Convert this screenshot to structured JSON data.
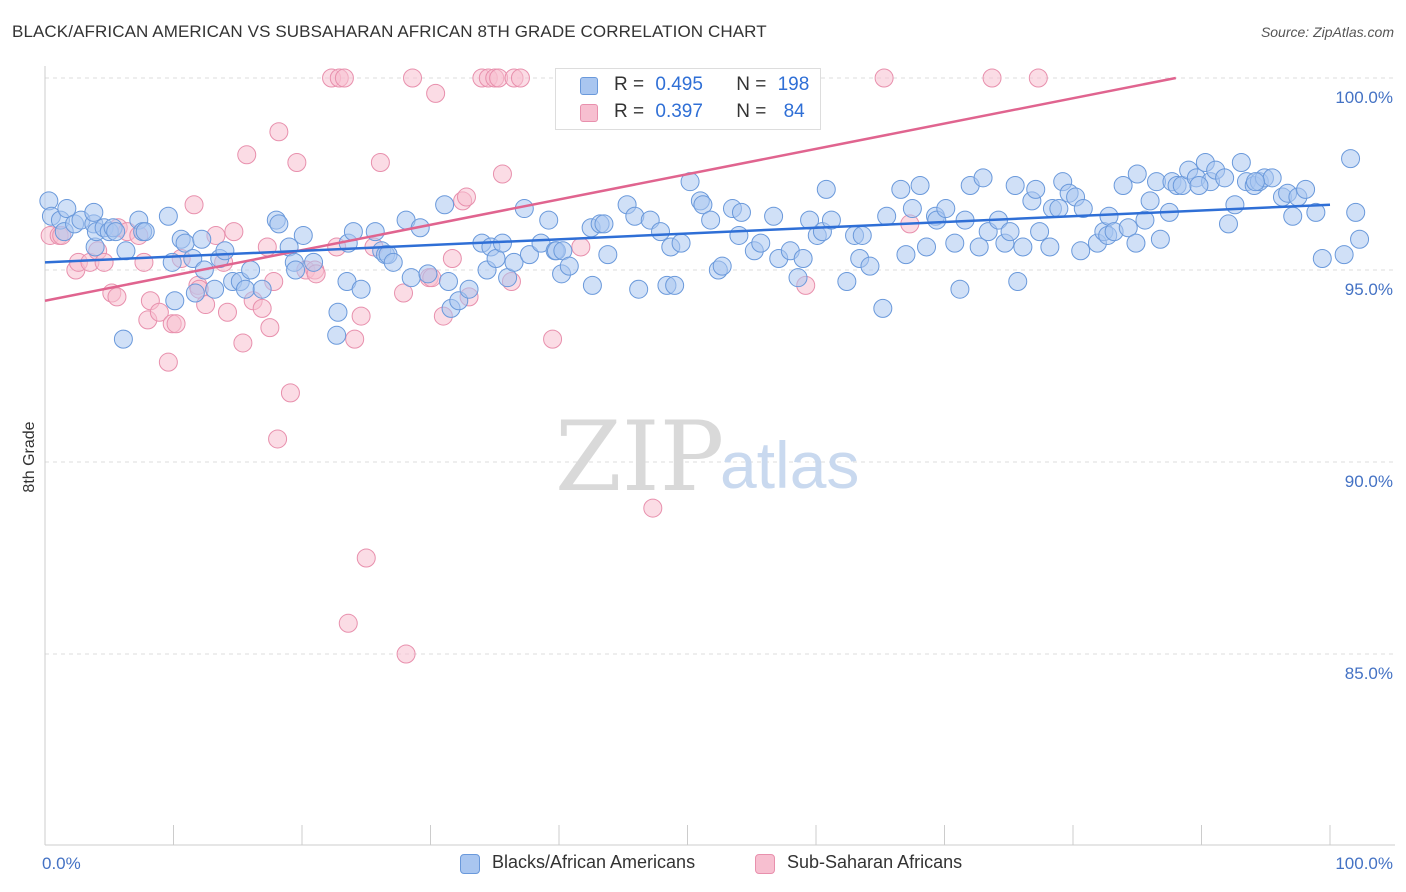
{
  "title": "BLACK/AFRICAN AMERICAN VS SUBSAHARAN AFRICAN 8TH GRADE CORRELATION CHART",
  "source": "Source: ZipAtlas.com",
  "watermark": {
    "zip": "ZIP",
    "atlas": "atlas"
  },
  "legend": {
    "rows": [
      {
        "r_label": "R =",
        "r_value": "0.495",
        "n_label": "N =",
        "n_value": "198"
      },
      {
        "r_label": "R =",
        "r_value": "0.397",
        "n_label": "N =",
        "n_value": "84"
      }
    ]
  },
  "bottom_legend": [
    "Blacks/African Americans",
    "Sub-Saharan Africans"
  ],
  "colors": {
    "blue_fill": "#a9c6f0",
    "blue_stroke": "#6a99db",
    "blue_line": "#2f6fd6",
    "pink_fill": "#f7bfd0",
    "pink_stroke": "#e890ad",
    "pink_line": "#e0648f",
    "tick_text": "#4472c4",
    "grid": "#dddddd"
  },
  "chart_data": {
    "type": "scatter",
    "title": "BLACK/AFRICAN AMERICAN VS SUBSAHARAN AFRICAN 8TH GRADE CORRELATION CHART",
    "xlabel": "",
    "ylabel": "8th Grade",
    "xlim": [
      0,
      100
    ],
    "ylim": [
      80.5,
      101.0
    ],
    "x_tick_labels": [
      "0.0%",
      "100.0%"
    ],
    "y_ticks": [
      85.0,
      90.0,
      95.0,
      100.0
    ],
    "y_tick_labels": [
      "85.0%",
      "90.0%",
      "95.0%",
      "100.0%"
    ],
    "grid": true,
    "legend_position": "top-center",
    "series": [
      {
        "name": "Blacks/African Americans",
        "r": 0.495,
        "n": 198,
        "trend": {
          "x": [
            0,
            100
          ],
          "y": [
            95.2,
            96.7
          ]
        },
        "points": [
          [
            0.3,
            96.8
          ],
          [
            0.5,
            96.4
          ],
          [
            1.2,
            96.3
          ],
          [
            1.5,
            96.0
          ],
          [
            1.7,
            96.6
          ],
          [
            2.3,
            96.2
          ],
          [
            2.8,
            96.3
          ],
          [
            3.8,
            96.2
          ],
          [
            3.8,
            96.5
          ],
          [
            3.9,
            95.6
          ],
          [
            4.0,
            96.0
          ],
          [
            4.6,
            96.1
          ],
          [
            5.0,
            96.0
          ],
          [
            5.3,
            96.1
          ],
          [
            5.5,
            96.0
          ],
          [
            6.1,
            93.2
          ],
          [
            6.3,
            95.5
          ],
          [
            7.3,
            96.3
          ],
          [
            7.6,
            96.0
          ],
          [
            7.8,
            96.0
          ],
          [
            9.6,
            96.4
          ],
          [
            9.9,
            95.2
          ],
          [
            10.1,
            94.2
          ],
          [
            10.6,
            95.8
          ],
          [
            10.9,
            95.7
          ],
          [
            11.5,
            95.3
          ],
          [
            11.7,
            94.4
          ],
          [
            12.2,
            95.8
          ],
          [
            12.4,
            95.0
          ],
          [
            13.2,
            94.5
          ],
          [
            13.6,
            95.3
          ],
          [
            14.0,
            95.5
          ],
          [
            14.6,
            94.7
          ],
          [
            15.2,
            94.7
          ],
          [
            15.6,
            94.5
          ],
          [
            16.0,
            95.0
          ],
          [
            16.9,
            94.5
          ],
          [
            18.0,
            96.3
          ],
          [
            18.2,
            96.2
          ],
          [
            19.0,
            95.6
          ],
          [
            19.4,
            95.2
          ],
          [
            19.5,
            95.0
          ],
          [
            20.1,
            95.9
          ],
          [
            20.9,
            95.2
          ],
          [
            22.7,
            93.3
          ],
          [
            22.8,
            93.9
          ],
          [
            23.5,
            94.7
          ],
          [
            23.6,
            95.7
          ],
          [
            24.0,
            96.0
          ],
          [
            24.6,
            94.5
          ],
          [
            25.7,
            96.0
          ],
          [
            26.2,
            95.5
          ],
          [
            26.5,
            95.4
          ],
          [
            26.7,
            95.4
          ],
          [
            27.1,
            95.2
          ],
          [
            28.1,
            96.3
          ],
          [
            28.5,
            94.8
          ],
          [
            29.2,
            96.1
          ],
          [
            29.8,
            94.9
          ],
          [
            31.1,
            96.7
          ],
          [
            31.4,
            94.7
          ],
          [
            31.6,
            94.0
          ],
          [
            32.2,
            94.2
          ],
          [
            33.0,
            94.5
          ],
          [
            34.0,
            95.7
          ],
          [
            34.4,
            95.0
          ],
          [
            34.7,
            95.6
          ],
          [
            35.1,
            95.3
          ],
          [
            35.6,
            95.7
          ],
          [
            36.0,
            94.8
          ],
          [
            36.5,
            95.2
          ],
          [
            37.3,
            96.6
          ],
          [
            37.7,
            95.4
          ],
          [
            38.6,
            95.7
          ],
          [
            39.2,
            96.3
          ],
          [
            39.7,
            95.5
          ],
          [
            39.8,
            95.5
          ],
          [
            40.2,
            94.9
          ],
          [
            40.3,
            95.5
          ],
          [
            40.8,
            95.1
          ],
          [
            42.5,
            96.1
          ],
          [
            42.6,
            94.6
          ],
          [
            43.2,
            96.2
          ],
          [
            43.5,
            96.2
          ],
          [
            43.8,
            95.4
          ],
          [
            45.3,
            96.7
          ],
          [
            45.9,
            96.4
          ],
          [
            46.2,
            94.5
          ],
          [
            47.1,
            96.3
          ],
          [
            47.9,
            96.0
          ],
          [
            48.4,
            94.6
          ],
          [
            48.7,
            95.6
          ],
          [
            49.0,
            94.6
          ],
          [
            49.5,
            95.7
          ],
          [
            50.2,
            97.3
          ],
          [
            51.0,
            96.8
          ],
          [
            51.2,
            96.7
          ],
          [
            51.8,
            96.3
          ],
          [
            52.4,
            95.0
          ],
          [
            52.7,
            95.1
          ],
          [
            53.5,
            96.6
          ],
          [
            54.0,
            95.9
          ],
          [
            54.2,
            96.5
          ],
          [
            55.2,
            95.5
          ],
          [
            55.7,
            95.7
          ],
          [
            56.7,
            96.4
          ],
          [
            57.1,
            95.3
          ],
          [
            58.0,
            95.5
          ],
          [
            58.6,
            94.8
          ],
          [
            59.0,
            95.3
          ],
          [
            60.1,
            95.9
          ],
          [
            60.5,
            96.0
          ],
          [
            60.8,
            97.1
          ],
          [
            61.2,
            96.3
          ],
          [
            62.4,
            94.7
          ],
          [
            63.0,
            95.9
          ],
          [
            63.4,
            95.3
          ],
          [
            63.6,
            95.9
          ],
          [
            64.2,
            95.1
          ],
          [
            65.2,
            94.0
          ],
          [
            65.5,
            96.4
          ],
          [
            66.6,
            97.1
          ],
          [
            67.0,
            95.4
          ],
          [
            67.5,
            96.6
          ],
          [
            68.1,
            97.2
          ],
          [
            68.6,
            95.6
          ],
          [
            69.3,
            96.4
          ],
          [
            69.4,
            96.3
          ],
          [
            70.1,
            96.6
          ],
          [
            70.8,
            95.7
          ],
          [
            71.2,
            94.5
          ],
          [
            71.6,
            96.3
          ],
          [
            72.0,
            97.2
          ],
          [
            72.7,
            95.6
          ],
          [
            73.0,
            97.4
          ],
          [
            73.4,
            96.0
          ],
          [
            74.2,
            96.3
          ],
          [
            74.7,
            95.7
          ],
          [
            75.1,
            96.0
          ],
          [
            75.5,
            97.2
          ],
          [
            75.7,
            94.7
          ],
          [
            76.1,
            95.6
          ],
          [
            76.8,
            96.8
          ],
          [
            77.1,
            97.1
          ],
          [
            77.4,
            96.0
          ],
          [
            78.2,
            95.6
          ],
          [
            78.4,
            96.6
          ],
          [
            78.9,
            96.6
          ],
          [
            79.2,
            97.3
          ],
          [
            79.7,
            97.0
          ],
          [
            80.2,
            96.9
          ],
          [
            80.6,
            95.5
          ],
          [
            80.8,
            96.6
          ],
          [
            81.9,
            95.7
          ],
          [
            82.4,
            96.0
          ],
          [
            82.7,
            95.9
          ],
          [
            82.8,
            96.4
          ],
          [
            83.2,
            96.0
          ],
          [
            83.9,
            97.2
          ],
          [
            84.3,
            96.1
          ],
          [
            84.9,
            95.7
          ],
          [
            85.6,
            96.3
          ],
          [
            86.0,
            96.8
          ],
          [
            86.5,
            97.3
          ],
          [
            86.8,
            95.8
          ],
          [
            87.5,
            96.5
          ],
          [
            87.7,
            97.3
          ],
          [
            88.1,
            97.2
          ],
          [
            88.5,
            97.2
          ],
          [
            89.0,
            97.6
          ],
          [
            89.6,
            97.4
          ],
          [
            90.3,
            97.8
          ],
          [
            90.7,
            97.3
          ],
          [
            91.1,
            97.6
          ],
          [
            91.8,
            97.4
          ],
          [
            92.1,
            96.2
          ],
          [
            92.6,
            96.7
          ],
          [
            93.1,
            97.8
          ],
          [
            93.5,
            97.3
          ],
          [
            94.1,
            97.2
          ],
          [
            94.5,
            97.3
          ],
          [
            94.9,
            97.4
          ],
          [
            95.5,
            97.4
          ],
          [
            96.3,
            96.9
          ],
          [
            96.7,
            97.0
          ],
          [
            97.1,
            96.4
          ],
          [
            97.5,
            96.9
          ],
          [
            98.1,
            97.1
          ],
          [
            98.9,
            96.5
          ],
          [
            99.4,
            95.3
          ],
          [
            101.1,
            95.4
          ],
          [
            101.6,
            97.9
          ],
          [
            102.0,
            96.5
          ],
          [
            102.3,
            95.8
          ],
          [
            94.2,
            97.3
          ],
          [
            89.8,
            97.2
          ],
          [
            85.0,
            97.5
          ],
          [
            59.5,
            96.3
          ]
        ]
      },
      {
        "name": "Sub-Saharan Africans",
        "r": 0.397,
        "n": 84,
        "trend": {
          "x": [
            0,
            88
          ],
          "y": [
            94.2,
            100.0
          ]
        },
        "points": [
          [
            0.4,
            95.9
          ],
          [
            1.1,
            95.9
          ],
          [
            1.3,
            95.9
          ],
          [
            2.4,
            95.0
          ],
          [
            2.6,
            95.2
          ],
          [
            3.5,
            95.2
          ],
          [
            4.1,
            95.5
          ],
          [
            4.6,
            95.2
          ],
          [
            5.2,
            94.4
          ],
          [
            5.6,
            94.3
          ],
          [
            5.7,
            96.1
          ],
          [
            6.4,
            96.0
          ],
          [
            7.3,
            95.9
          ],
          [
            7.7,
            95.2
          ],
          [
            8.0,
            93.7
          ],
          [
            8.2,
            94.2
          ],
          [
            8.9,
            93.9
          ],
          [
            9.6,
            92.6
          ],
          [
            9.9,
            93.6
          ],
          [
            10.2,
            93.6
          ],
          [
            10.6,
            95.3
          ],
          [
            11.6,
            96.7
          ],
          [
            11.9,
            94.6
          ],
          [
            12.0,
            94.5
          ],
          [
            12.5,
            94.1
          ],
          [
            13.3,
            95.9
          ],
          [
            13.9,
            95.2
          ],
          [
            14.2,
            93.9
          ],
          [
            14.7,
            96.0
          ],
          [
            15.4,
            93.1
          ],
          [
            15.7,
            98.0
          ],
          [
            16.2,
            94.2
          ],
          [
            16.9,
            94.0
          ],
          [
            17.3,
            95.6
          ],
          [
            17.5,
            93.5
          ],
          [
            17.8,
            94.7
          ],
          [
            18.1,
            90.6
          ],
          [
            18.2,
            98.6
          ],
          [
            19.1,
            91.8
          ],
          [
            19.6,
            97.8
          ],
          [
            20.3,
            95.0
          ],
          [
            21.0,
            95.0
          ],
          [
            21.1,
            94.9
          ],
          [
            22.3,
            100.0
          ],
          [
            22.7,
            95.6
          ],
          [
            22.9,
            100.0
          ],
          [
            23.3,
            100.0
          ],
          [
            23.6,
            85.8
          ],
          [
            24.1,
            93.2
          ],
          [
            24.6,
            93.8
          ],
          [
            25.0,
            87.5
          ],
          [
            25.6,
            95.6
          ],
          [
            26.1,
            97.8
          ],
          [
            27.9,
            94.4
          ],
          [
            28.1,
            85.0
          ],
          [
            28.6,
            100.0
          ],
          [
            29.9,
            94.8
          ],
          [
            30.1,
            94.8
          ],
          [
            30.4,
            99.6
          ],
          [
            31.0,
            93.8
          ],
          [
            31.7,
            95.3
          ],
          [
            32.5,
            96.8
          ],
          [
            32.8,
            96.9
          ],
          [
            33.0,
            94.3
          ],
          [
            34.0,
            100.0
          ],
          [
            34.5,
            100.0
          ],
          [
            35.0,
            100.0
          ],
          [
            35.3,
            100.0
          ],
          [
            35.6,
            97.5
          ],
          [
            36.3,
            94.7
          ],
          [
            36.5,
            100.0
          ],
          [
            37.0,
            100.0
          ],
          [
            39.5,
            93.2
          ],
          [
            41.7,
            95.6
          ],
          [
            44.4,
            99.2
          ],
          [
            46.2,
            99.6
          ],
          [
            47.0,
            99.9
          ],
          [
            47.3,
            88.8
          ],
          [
            56.9,
            99.7
          ],
          [
            59.2,
            94.6
          ],
          [
            65.3,
            100.0
          ],
          [
            67.3,
            96.2
          ],
          [
            73.7,
            100.0
          ],
          [
            77.3,
            100.0
          ]
        ]
      }
    ]
  }
}
